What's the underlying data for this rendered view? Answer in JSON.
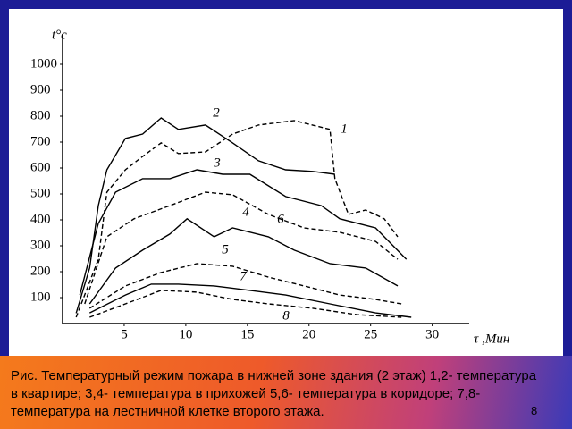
{
  "chart_data": {
    "type": "line",
    "y_label": "t°c",
    "x_label": "τ ,Мин",
    "xlim": [
      0,
      33
    ],
    "xticks": [
      5,
      10,
      15,
      20,
      25,
      30
    ],
    "ylim": [
      0,
      1100
    ],
    "yticks": [
      100,
      200,
      300,
      400,
      500,
      600,
      700,
      800,
      900,
      1000
    ],
    "series": [
      {
        "name": "1",
        "color": "#000000",
        "dashed": true,
        "x": [
          1.1,
          2.9,
          3.6,
          5.1,
          6.5,
          8,
          9.4,
          11.6,
          13.8,
          15.9,
          18.8,
          21.7,
          22.1,
          23.2,
          24.6,
          26.1,
          27.2
        ],
        "values": [
          24,
          248,
          507,
          593,
          645,
          697,
          656,
          662,
          731,
          766,
          783,
          749,
          559,
          421,
          438,
          404,
          335
        ]
      },
      {
        "name": "2",
        "color": "#000000",
        "dashed": false,
        "x": [
          1.1,
          2.2,
          2.9,
          3.6,
          5.1,
          6.5,
          8,
          9.4,
          11.6,
          13.8,
          15.9,
          18.1,
          20.3,
          22.1
        ],
        "values": [
          40,
          214,
          455,
          593,
          714,
          731,
          793,
          749,
          766,
          697,
          628,
          593,
          587,
          576
        ]
      },
      {
        "name": "3",
        "color": "#000000",
        "dashed": false,
        "x": [
          1.4,
          2.9,
          4.3,
          6.5,
          8.7,
          10.9,
          13,
          15.2,
          18.1,
          21,
          22.5,
          25.4,
          27.9
        ],
        "values": [
          110,
          386,
          507,
          559,
          559,
          593,
          576,
          576,
          490,
          455,
          404,
          369,
          248
        ]
      },
      {
        "name": "4",
        "color": "#000000",
        "dashed": true,
        "x": [
          1.8,
          3.6,
          5.8,
          8.7,
          11.6,
          13.8,
          16.7,
          19.6,
          22.5,
          25.4,
          27.2
        ],
        "values": [
          76,
          335,
          404,
          455,
          507,
          497,
          421,
          369,
          352,
          317,
          248
        ]
      },
      {
        "name": "5",
        "color": "#000000",
        "dashed": true,
        "x": [
          2.2,
          5.1,
          8,
          10.9,
          13.8,
          16.7,
          19.6,
          22.5,
          25.4,
          27.5
        ],
        "values": [
          59,
          145,
          197,
          231,
          221,
          179,
          145,
          110,
          93,
          76
        ]
      },
      {
        "name": "6",
        "color": "#000000",
        "dashed": false,
        "x": [
          2.2,
          4.3,
          6.5,
          8.7,
          10.1,
          12.3,
          13.8,
          16.7,
          18.8,
          21.7,
          24.6,
          27.2
        ],
        "values": [
          76,
          214,
          283,
          345,
          404,
          335,
          369,
          335,
          283,
          231,
          214,
          145
        ]
      },
      {
        "name": "7",
        "color": "#000000",
        "dashed": false,
        "x": [
          2.2,
          5.1,
          7.2,
          9.4,
          12.3,
          15.2,
          18.1,
          21.7,
          25.4,
          28.3
        ],
        "values": [
          41,
          110,
          152,
          152,
          145,
          128,
          110,
          76,
          41,
          24
        ]
      },
      {
        "name": "8",
        "color": "#000000",
        "dashed": true,
        "x": [
          2.2,
          5.1,
          8,
          10.9,
          13.8,
          16.7,
          20.3,
          23.9,
          27.5
        ],
        "values": [
          24,
          76,
          128,
          121,
          93,
          76,
          59,
          34,
          24
        ]
      }
    ]
  },
  "caption": "Рис. Температурный режим пожара в нижней зоне здания (2 этаж) 1,2- температура в квартире; 3,4- температура в прихожей 5,6- температура в коридоре; 7,8- температура на лестничной клетке второго этажа.",
  "page_number": "8"
}
